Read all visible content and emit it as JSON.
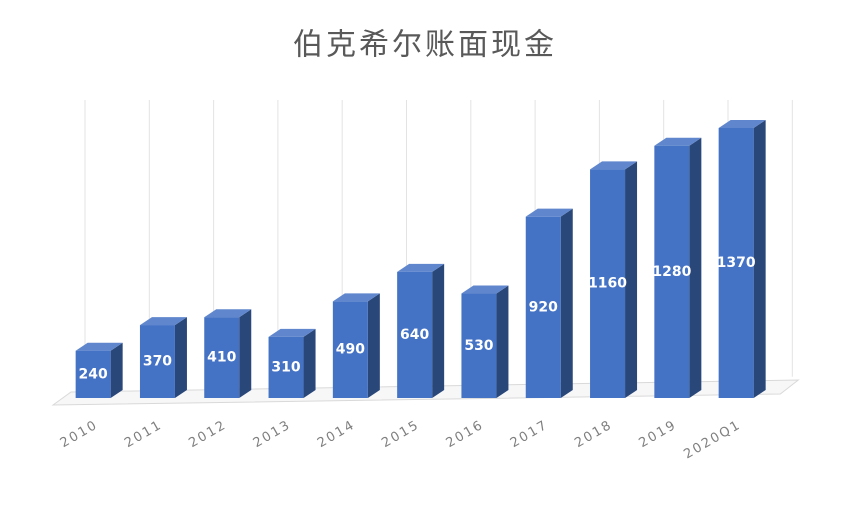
{
  "chart_data": {
    "type": "bar3d",
    "title": "伯克希尔账面现金",
    "categories": [
      "2010",
      "2011",
      "2012",
      "2013",
      "2014",
      "2015",
      "2016",
      "2017",
      "2018",
      "2019",
      "2020Q1"
    ],
    "values": [
      240,
      370,
      410,
      310,
      490,
      640,
      530,
      920,
      1160,
      1280,
      1370
    ],
    "color": "#4472c4"
  }
}
